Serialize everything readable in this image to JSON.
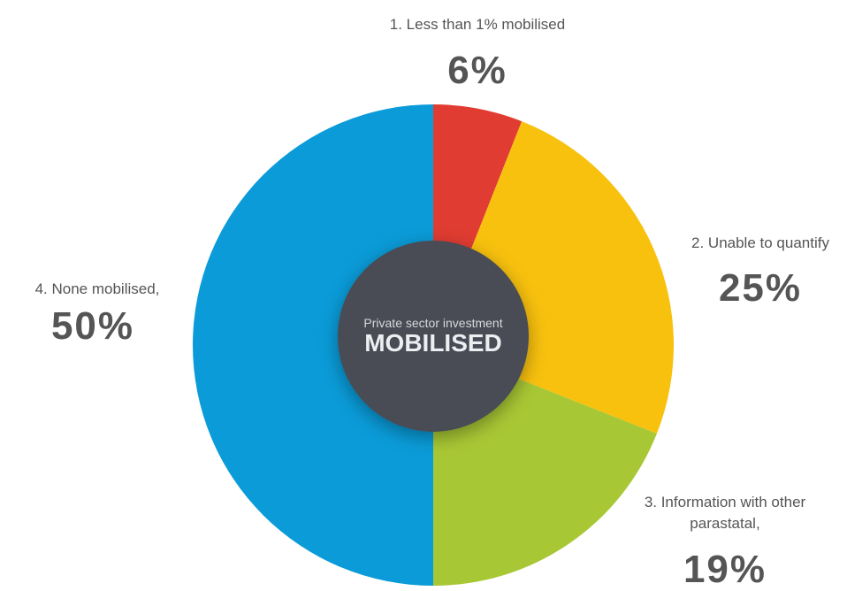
{
  "chart_data": {
    "type": "pie",
    "categories": [
      "1. Less than 1% mobilised",
      "2. Unable to quantify",
      "3. Information with other parastatal,",
      "4. None mobilised,"
    ],
    "values": [
      6,
      25,
      19,
      50
    ],
    "value_labels": [
      "6%",
      "25%",
      "19%",
      "50%"
    ],
    "colors": [
      "#e03c31",
      "#f8c10e",
      "#a8c734",
      "#0a9bd8"
    ],
    "center_subtitle": "Private sector investment",
    "center_title": "MOBILISED"
  }
}
